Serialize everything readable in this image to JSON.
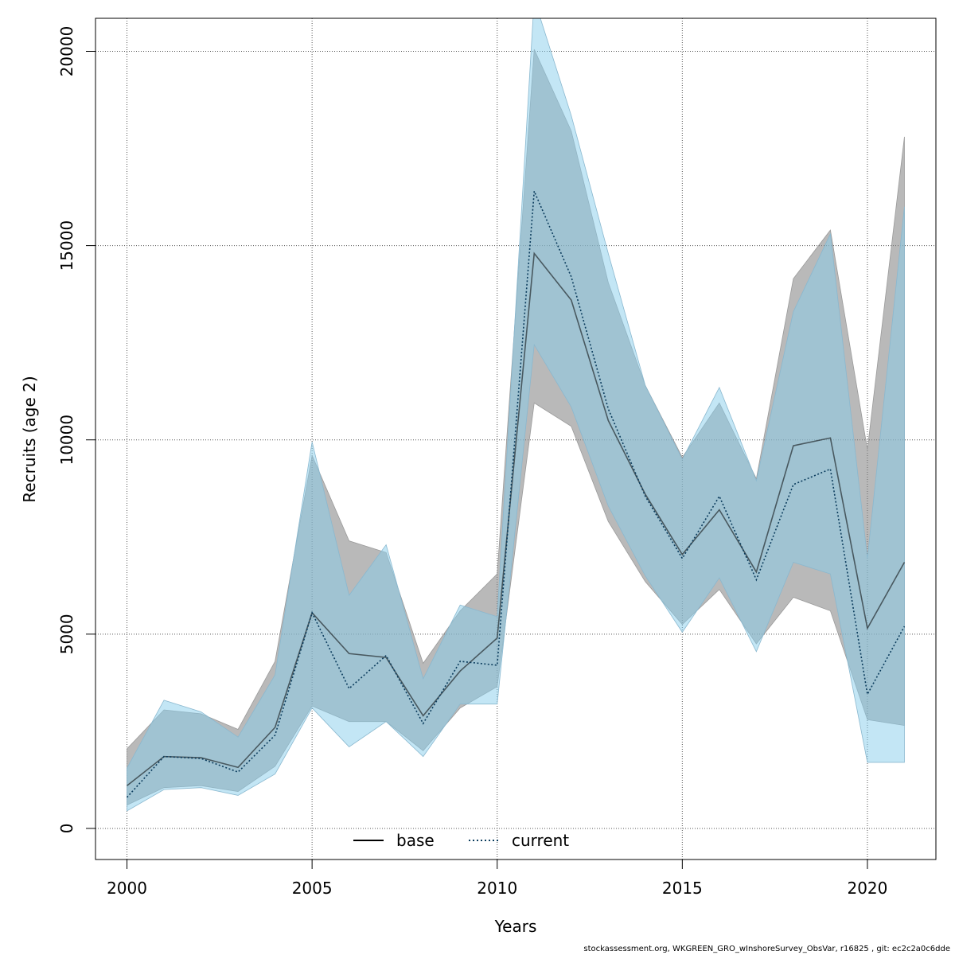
{
  "chart_data": {
    "type": "line",
    "title": "",
    "xlabel": "Years",
    "ylabel": "Recruits (age 2)",
    "xlim": [
      1999.15,
      2021.85
    ],
    "ylim": [
      -800,
      20850
    ],
    "x_ticks": [
      2000,
      2005,
      2010,
      2015,
      2020
    ],
    "x_tick_labels": [
      "2000",
      "2005",
      "2010",
      "2015",
      "2020"
    ],
    "y_ticks": [
      0,
      5000,
      10000,
      15000,
      20000
    ],
    "y_tick_labels": [
      "0",
      "5000",
      "10000",
      "15000",
      "20000"
    ],
    "grid": true,
    "legend_position": "bottom-center",
    "x": [
      2000,
      2001,
      2002,
      2003,
      2004,
      2005,
      2006,
      2007,
      2008,
      2009,
      2010,
      2011,
      2012,
      2013,
      2014,
      2015,
      2016,
      2017,
      2018,
      2019,
      2020,
      2021
    ],
    "series": [
      {
        "name": "base",
        "color": "#000000",
        "band_color": "#808080",
        "line_style": "solid",
        "values": [
          1100,
          1850,
          1820,
          1570,
          2600,
          5550,
          4500,
          4400,
          2900,
          4050,
          4900,
          14800,
          13600,
          10500,
          8600,
          7050,
          8200,
          6600,
          9850,
          10050,
          5150,
          6850
        ],
        "lower": [
          600,
          1050,
          1100,
          950,
          1600,
          3150,
          2750,
          2750,
          2000,
          3100,
          3650,
          10950,
          10350,
          7900,
          6350,
          5250,
          6150,
          4750,
          5950,
          5600,
          2800,
          2650
        ],
        "upper": [
          2050,
          3050,
          2950,
          2550,
          4300,
          9600,
          7400,
          7100,
          4250,
          5600,
          6550,
          20050,
          17950,
          14050,
          11400,
          9550,
          10950,
          9000,
          14150,
          15400,
          9750,
          17800
        ]
      },
      {
        "name": "current",
        "color": "#0b3c5d",
        "band_color": "#87ceeb",
        "line_style": "dotted",
        "values": [
          800,
          1850,
          1800,
          1450,
          2400,
          5550,
          3600,
          4450,
          2700,
          4300,
          4200,
          16400,
          14200,
          10800,
          8550,
          6950,
          8550,
          6400,
          8850,
          9250,
          3450,
          5200
        ],
        "lower": [
          450,
          1000,
          1050,
          850,
          1400,
          3100,
          2100,
          2750,
          1850,
          3200,
          3200,
          12450,
          10850,
          8300,
          6500,
          5050,
          6450,
          4550,
          6850,
          6550,
          1700,
          1700
        ],
        "upper": [
          1550,
          3300,
          3000,
          2350,
          3950,
          9950,
          6000,
          7300,
          3850,
          5750,
          5450,
          21350,
          18350,
          14800,
          11400,
          9500,
          11350,
          8950,
          13300,
          15300,
          6950,
          16000
        ]
      }
    ]
  },
  "footer": {
    "text": "stockassessment.org, WKGREEN_GRO_wInshoreSurvey_ObsVar, r16825 , git: ec2c2a0c6dde"
  }
}
